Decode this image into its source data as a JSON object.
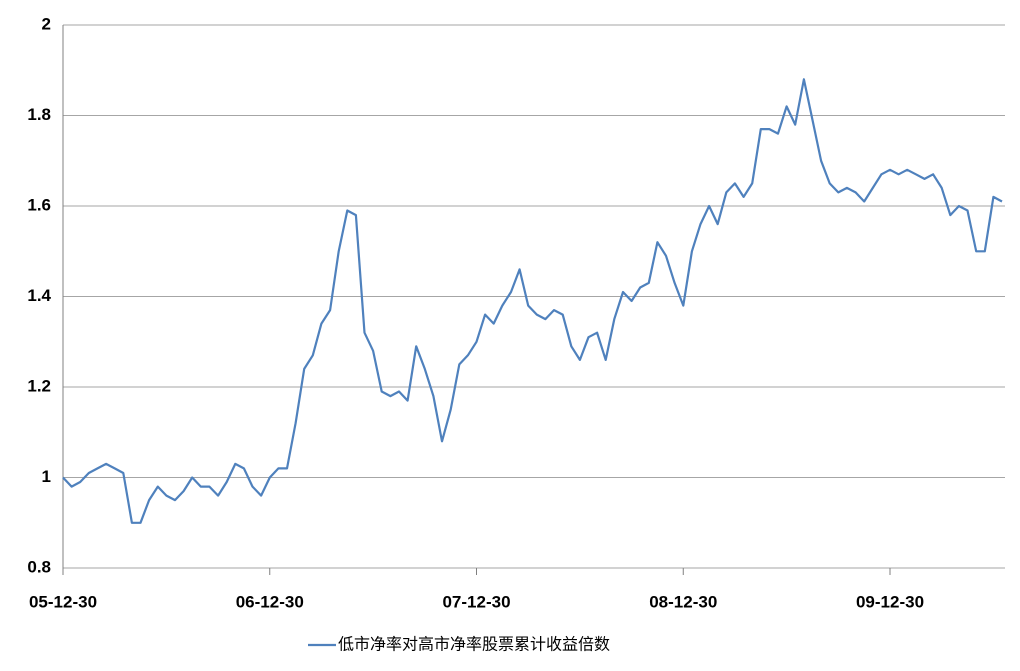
{
  "chart_data": {
    "type": "line",
    "categories": [
      "05-12-30",
      null,
      null,
      null,
      null,
      null,
      null,
      null,
      null,
      null,
      null,
      null,
      null,
      null,
      null,
      null,
      null,
      null,
      null,
      null,
      null,
      null,
      null,
      null,
      "06-12-30",
      null,
      null,
      null,
      null,
      null,
      null,
      null,
      null,
      null,
      null,
      null,
      null,
      null,
      null,
      null,
      null,
      null,
      null,
      null,
      null,
      null,
      null,
      null,
      "07-12-30",
      null,
      null,
      null,
      null,
      null,
      null,
      null,
      null,
      null,
      null,
      null,
      null,
      null,
      null,
      null,
      null,
      null,
      null,
      null,
      null,
      null,
      null,
      null,
      "08-12-30",
      null,
      null,
      null,
      null,
      null,
      null,
      null,
      null,
      null,
      null,
      null,
      null,
      null,
      null,
      null,
      null,
      null,
      null,
      null,
      null,
      null,
      null,
      null,
      "09-12-30",
      null,
      null,
      null,
      null,
      null,
      null,
      null,
      null,
      null,
      null,
      null,
      null,
      null
    ],
    "series": [
      {
        "name": "低市净率对高市净率股票累计收益倍数",
        "color": "#4f81bd",
        "values": [
          1.0,
          0.98,
          0.99,
          1.01,
          1.02,
          1.03,
          1.02,
          1.01,
          0.9,
          0.9,
          0.95,
          0.98,
          0.96,
          0.95,
          0.97,
          1.0,
          0.98,
          0.98,
          0.96,
          0.99,
          1.03,
          1.02,
          0.98,
          0.96,
          1.0,
          1.02,
          1.02,
          1.12,
          1.24,
          1.27,
          1.34,
          1.37,
          1.5,
          1.59,
          1.58,
          1.32,
          1.28,
          1.19,
          1.18,
          1.19,
          1.17,
          1.29,
          1.24,
          1.18,
          1.08,
          1.15,
          1.25,
          1.27,
          1.3,
          1.36,
          1.34,
          1.38,
          1.41,
          1.46,
          1.38,
          1.36,
          1.35,
          1.37,
          1.36,
          1.29,
          1.26,
          1.31,
          1.32,
          1.26,
          1.35,
          1.41,
          1.39,
          1.42,
          1.43,
          1.52,
          1.49,
          1.43,
          1.38,
          1.5,
          1.56,
          1.6,
          1.56,
          1.63,
          1.65,
          1.62,
          1.65,
          1.77,
          1.77,
          1.76,
          1.82,
          1.78,
          1.88,
          1.79,
          1.7,
          1.65,
          1.63,
          1.64,
          1.63,
          1.61,
          1.64,
          1.67,
          1.68,
          1.67,
          1.68,
          1.67,
          1.66,
          1.67,
          1.64,
          1.58,
          1.6,
          1.59,
          1.5,
          1.5,
          1.62,
          1.61
        ]
      }
    ],
    "ylim": [
      0.8,
      2
    ],
    "yticks": [
      0.8,
      1,
      1.2,
      1.4,
      1.6,
      1.8,
      2
    ],
    "grid": true,
    "legend": "bottom"
  }
}
